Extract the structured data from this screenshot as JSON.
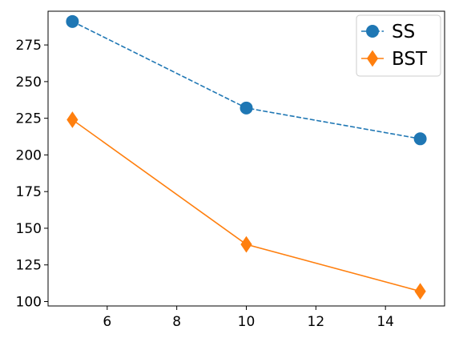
{
  "chart_data": {
    "type": "line",
    "x": [
      5,
      10,
      15
    ],
    "series": [
      {
        "name": "SS",
        "values": [
          291,
          232,
          211
        ],
        "color": "#1f77b4",
        "linestyle": "dashed",
        "marker": "circle"
      },
      {
        "name": "BST",
        "values": [
          224,
          139,
          107
        ],
        "color": "#ff7f0e",
        "linestyle": "solid",
        "marker": "thin-diamond"
      }
    ],
    "xlim": [
      4.3,
      15.7
    ],
    "ylim": [
      97,
      298
    ],
    "xticks": [
      6,
      8,
      10,
      12,
      14
    ],
    "yticks": [
      100,
      125,
      150,
      175,
      200,
      225,
      250,
      275
    ],
    "title": "",
    "xlabel": "",
    "ylabel": "",
    "grid": false,
    "legend": "top-right"
  }
}
